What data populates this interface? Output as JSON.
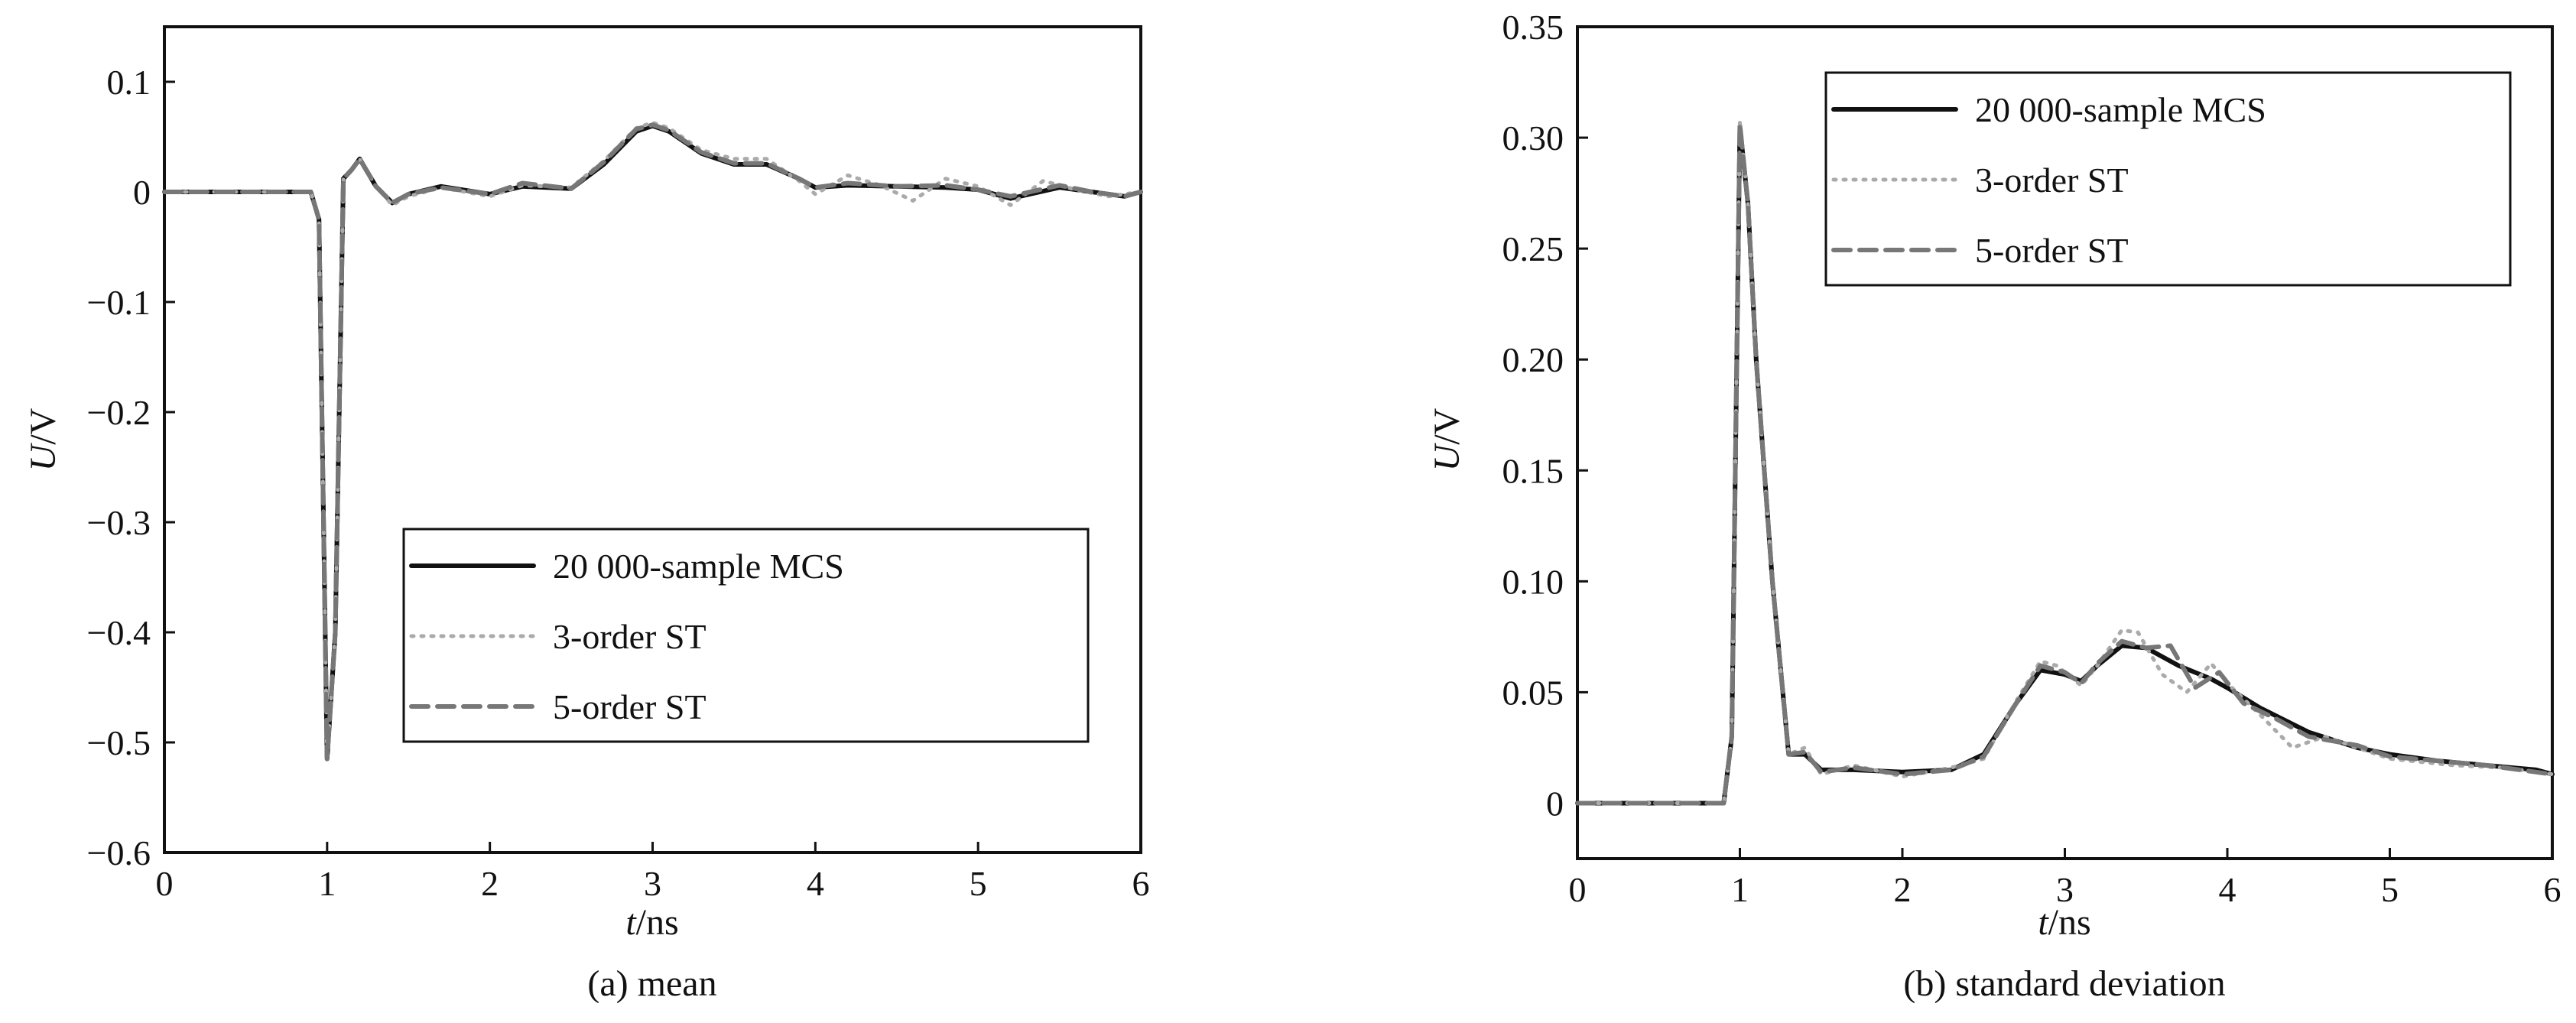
{
  "chart_data": [
    {
      "type": "line",
      "caption": "(a) mean",
      "xlabel": "t/ns",
      "ylabel": "U/V",
      "xlim": [
        0,
        6
      ],
      "ylim": [
        -0.6,
        0.15
      ],
      "xticks": [
        "0",
        "1",
        "2",
        "3",
        "4",
        "5",
        "6"
      ],
      "yticks": [
        "−0.6",
        "−0.5",
        "−0.4",
        "−0.3",
        "−0.2",
        "−0.1",
        "0",
        "0.1"
      ],
      "ytick_values": [
        -0.6,
        -0.5,
        -0.4,
        -0.3,
        -0.2,
        -0.1,
        0,
        0.1
      ],
      "grid": false,
      "legend_position": "lower-right",
      "series": [
        {
          "name": "20 000-sample MCS",
          "color": "#111111",
          "style": "solid",
          "x": [
            0,
            0.5,
            0.9,
            0.95,
            1.0,
            1.05,
            1.1,
            1.15,
            1.2,
            1.3,
            1.4,
            1.5,
            1.7,
            2.0,
            2.2,
            2.5,
            2.7,
            2.9,
            3.0,
            3.1,
            3.3,
            3.5,
            3.7,
            3.9,
            4.0,
            4.2,
            4.5,
            4.8,
            5.0,
            5.2,
            5.5,
            5.7,
            5.9,
            6.0
          ],
          "y": [
            0,
            0,
            0,
            -0.025,
            -0.515,
            -0.4,
            0.012,
            0.02,
            0.03,
            0.005,
            -0.01,
            -0.002,
            0.005,
            -0.002,
            0.005,
            0.003,
            0.025,
            0.055,
            0.06,
            0.055,
            0.035,
            0.025,
            0.025,
            0.012,
            0.004,
            0.006,
            0.005,
            0.004,
            0.002,
            -0.006,
            0.004,
            0.0,
            -0.004,
            0.0
          ]
        },
        {
          "name": "3-order ST",
          "color": "#aaaaaa",
          "style": "dotted",
          "x": [
            0,
            0.5,
            0.9,
            0.95,
            1.0,
            1.05,
            1.1,
            1.15,
            1.2,
            1.3,
            1.4,
            1.5,
            1.7,
            2.0,
            2.2,
            2.5,
            2.7,
            2.9,
            3.0,
            3.1,
            3.3,
            3.5,
            3.7,
            3.9,
            4.0,
            4.2,
            4.4,
            4.6,
            4.8,
            5.0,
            5.2,
            5.4,
            5.6,
            5.8,
            6.0
          ],
          "y": [
            0,
            0,
            0,
            -0.025,
            -0.515,
            -0.4,
            0.012,
            0.02,
            0.03,
            0.005,
            -0.012,
            -0.004,
            0.004,
            -0.004,
            0.006,
            0.004,
            0.028,
            0.058,
            0.063,
            0.058,
            0.038,
            0.03,
            0.03,
            0.01,
            -0.002,
            0.015,
            0.006,
            -0.008,
            0.012,
            0.005,
            -0.012,
            0.01,
            0.002,
            -0.004,
            0.0
          ]
        },
        {
          "name": "5-order ST",
          "color": "#777777",
          "style": "dashed",
          "x": [
            0,
            0.5,
            0.9,
            0.95,
            1.0,
            1.05,
            1.1,
            1.15,
            1.2,
            1.3,
            1.4,
            1.5,
            1.7,
            2.0,
            2.2,
            2.5,
            2.7,
            2.9,
            3.0,
            3.1,
            3.3,
            3.5,
            3.7,
            3.9,
            4.0,
            4.2,
            4.5,
            4.8,
            5.0,
            5.2,
            5.5,
            5.7,
            5.9,
            6.0
          ],
          "y": [
            0,
            0,
            0,
            -0.025,
            -0.515,
            -0.4,
            0.012,
            0.02,
            0.03,
            0.005,
            -0.01,
            -0.002,
            0.004,
            -0.002,
            0.008,
            0.003,
            0.027,
            0.057,
            0.061,
            0.056,
            0.036,
            0.026,
            0.026,
            0.012,
            0.004,
            0.008,
            0.005,
            0.006,
            0.002,
            -0.004,
            0.006,
            0.0,
            -0.004,
            0.0
          ]
        }
      ]
    },
    {
      "type": "line",
      "caption": "(b) standard deviation",
      "xlabel": "t/ns",
      "ylabel": "U/V",
      "xlim": [
        0,
        6
      ],
      "ylim": [
        -0.025,
        0.35
      ],
      "xticks": [
        "0",
        "1",
        "2",
        "3",
        "4",
        "5",
        "6"
      ],
      "yticks": [
        "0",
        "0.05",
        "0.10",
        "0.15",
        "0.20",
        "0.25",
        "0.30",
        "0.35"
      ],
      "ytick_values": [
        0,
        0.05,
        0.1,
        0.15,
        0.2,
        0.25,
        0.3,
        0.35
      ],
      "grid": false,
      "legend_position": "top-center",
      "series": [
        {
          "name": "20 000-sample MCS",
          "color": "#111111",
          "style": "solid",
          "x": [
            0,
            0.5,
            0.9,
            0.95,
            1.0,
            1.05,
            1.1,
            1.2,
            1.3,
            1.4,
            1.5,
            1.7,
            2.0,
            2.3,
            2.5,
            2.7,
            2.85,
            3.0,
            3.1,
            3.2,
            3.35,
            3.5,
            3.7,
            3.9,
            4.0,
            4.2,
            4.5,
            4.8,
            5.0,
            5.3,
            5.6,
            5.9,
            6.0
          ],
          "y": [
            0,
            0,
            0,
            0.03,
            0.305,
            0.27,
            0.2,
            0.1,
            0.022,
            0.022,
            0.015,
            0.015,
            0.014,
            0.015,
            0.022,
            0.045,
            0.06,
            0.058,
            0.055,
            0.062,
            0.071,
            0.07,
            0.062,
            0.056,
            0.052,
            0.043,
            0.032,
            0.025,
            0.022,
            0.019,
            0.017,
            0.015,
            0.013
          ]
        },
        {
          "name": "3-order ST",
          "color": "#aaaaaa",
          "style": "dotted",
          "x": [
            0,
            0.5,
            0.9,
            0.95,
            1.0,
            1.05,
            1.1,
            1.2,
            1.3,
            1.4,
            1.5,
            1.7,
            2.0,
            2.3,
            2.5,
            2.7,
            2.85,
            2.95,
            3.1,
            3.2,
            3.35,
            3.45,
            3.6,
            3.75,
            3.9,
            4.0,
            4.2,
            4.4,
            4.6,
            5.0,
            5.4,
            5.7,
            6.0
          ],
          "y": [
            0,
            0,
            0,
            0.03,
            0.308,
            0.27,
            0.2,
            0.1,
            0.022,
            0.025,
            0.013,
            0.017,
            0.012,
            0.016,
            0.02,
            0.046,
            0.064,
            0.062,
            0.053,
            0.062,
            0.078,
            0.077,
            0.058,
            0.05,
            0.063,
            0.054,
            0.04,
            0.025,
            0.03,
            0.02,
            0.017,
            0.016,
            0.013
          ]
        },
        {
          "name": "5-order ST",
          "color": "#777777",
          "style": "dashed",
          "x": [
            0,
            0.5,
            0.9,
            0.95,
            1.0,
            1.05,
            1.1,
            1.2,
            1.3,
            1.4,
            1.5,
            1.7,
            2.0,
            2.3,
            2.5,
            2.7,
            2.85,
            3.0,
            3.1,
            3.2,
            3.35,
            3.5,
            3.65,
            3.8,
            3.95,
            4.1,
            4.3,
            4.5,
            4.8,
            5.0,
            5.3,
            5.6,
            6.0
          ],
          "y": [
            0,
            0,
            0,
            0.03,
            0.306,
            0.27,
            0.2,
            0.1,
            0.022,
            0.023,
            0.014,
            0.016,
            0.013,
            0.015,
            0.021,
            0.045,
            0.062,
            0.059,
            0.054,
            0.063,
            0.073,
            0.07,
            0.071,
            0.052,
            0.059,
            0.045,
            0.038,
            0.03,
            0.026,
            0.021,
            0.019,
            0.017,
            0.013
          ]
        }
      ]
    }
  ]
}
